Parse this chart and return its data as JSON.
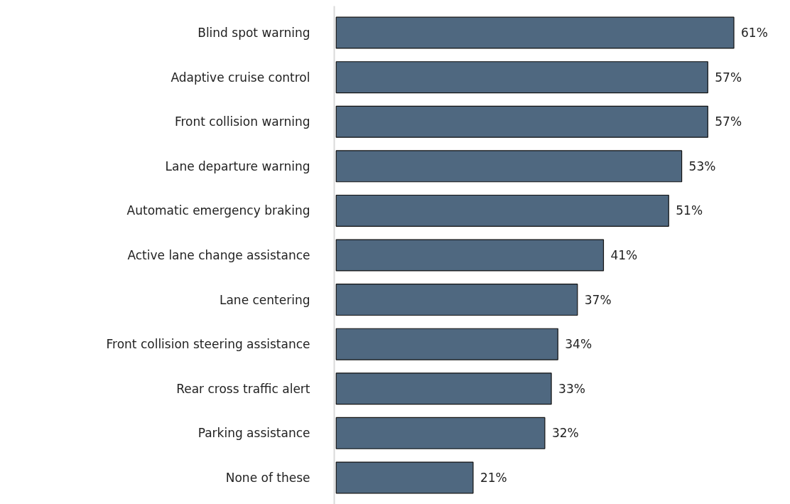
{
  "chart_data": {
    "type": "bar",
    "orientation": "horizontal",
    "categories": [
      "Blind spot warning",
      "Adaptive cruise control",
      "Front collision warning",
      "Lane departure warning",
      "Automatic emergency braking",
      "Active lane change assistance",
      "Lane centering",
      "Front collision steering assistance",
      "Rear cross traffic alert",
      "Parking assistance",
      "None of these"
    ],
    "values": [
      61,
      57,
      57,
      53,
      51,
      41,
      37,
      34,
      33,
      32,
      21
    ],
    "value_labels": [
      "61%",
      "57%",
      "57%",
      "53%",
      "51%",
      "41%",
      "37%",
      "34%",
      "33%",
      "32%",
      "21%"
    ],
    "color": "#4f6880",
    "tick_labels": "y"
  }
}
